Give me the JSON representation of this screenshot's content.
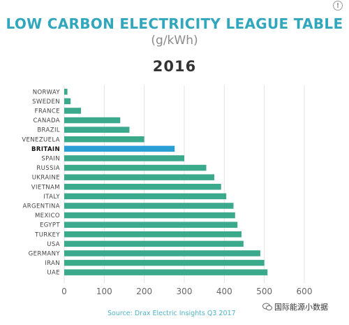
{
  "info_icon": "info-icon",
  "chart_data": {
    "type": "bar",
    "orientation": "horizontal",
    "title": "LOW CARBON ELECTRICITY LEAGUE TABLE",
    "subtitle": "(g/kWh)",
    "year": "2016",
    "categories": [
      "NORWAY",
      "SWEDEN",
      "FRANCE",
      "CANADA",
      "BRAZIL",
      "VENEZUELA",
      "BRITAIN",
      "SPAIN",
      "RUSSIA",
      "UKRAINE",
      "VIETNAM",
      "ITALY",
      "ARGENTINA",
      "MEXICO",
      "EGYPT",
      "TURKEY",
      "USA",
      "GERMANY",
      "IRAN",
      "UAE"
    ],
    "values": [
      8,
      16,
      42,
      140,
      163,
      200,
      276,
      300,
      355,
      375,
      392,
      405,
      423,
      427,
      433,
      443,
      448,
      490,
      500,
      508
    ],
    "highlight": "BRITAIN",
    "xlim": [
      0,
      600
    ],
    "xticks": [
      0,
      100,
      200,
      300,
      400,
      500,
      600
    ],
    "grid": true,
    "colors": {
      "bar": "#3aa98c",
      "highlight": "#2a9fd6",
      "grid": "#e4e4e4",
      "title": "#31a7bd"
    }
  },
  "source": "Source: Drax Electric Insights Q3 2017",
  "watermark": {
    "icon": "wechat-icon",
    "text": "国际能源小数据"
  }
}
